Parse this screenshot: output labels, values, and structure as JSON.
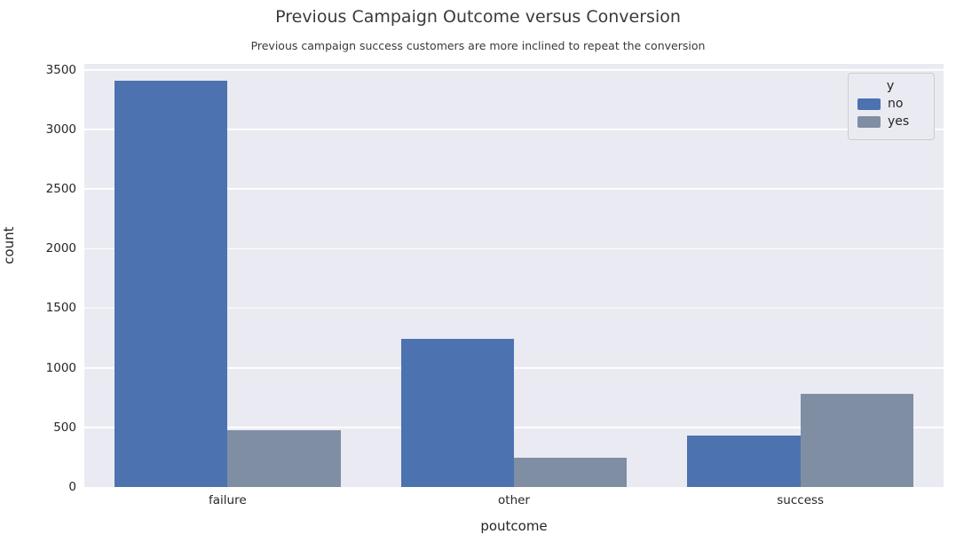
{
  "chart_data": {
    "type": "bar",
    "title": "Previous Campaign Outcome versus Conversion",
    "subtitle": "Previous campaign success customers are more inclined to repeat the conversion",
    "xlabel": "poutcome",
    "ylabel": "count",
    "categories": [
      "failure",
      "other",
      "success"
    ],
    "series": [
      {
        "name": "no",
        "color": "#4c72b0",
        "values": [
          3410,
          1240,
          430
        ]
      },
      {
        "name": "yes",
        "color": "#7f8ea3",
        "values": [
          480,
          245,
          780
        ]
      }
    ],
    "ylim": [
      0,
      3500
    ],
    "yticks": [
      0,
      500,
      1000,
      1500,
      2000,
      2500,
      3000,
      3500
    ],
    "grid": true,
    "legend": {
      "title": "y",
      "position": "upper right",
      "entries": [
        "no",
        "yes"
      ]
    },
    "plot_background": "#eaeaf2",
    "gridline_color": "#ffffff"
  }
}
